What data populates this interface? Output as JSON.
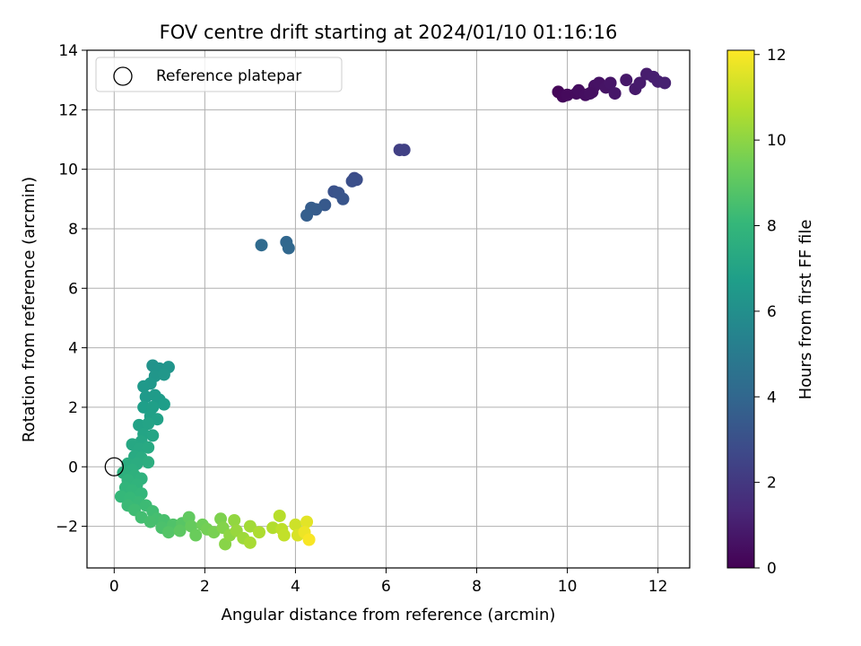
{
  "chart_data": {
    "type": "scatter",
    "title": "FOV centre drift starting at 2024/01/10 01:16:16",
    "xlabel": "Angular distance from reference (arcmin)",
    "ylabel": "Rotation from reference (arcmin)",
    "xlim": [
      -0.6,
      12.7
    ],
    "ylim": [
      -3.4,
      14.0
    ],
    "xticks": [
      0,
      2,
      4,
      6,
      8,
      10,
      12
    ],
    "yticks": [
      -2,
      0,
      2,
      4,
      6,
      8,
      10,
      12,
      14
    ],
    "grid": true,
    "legend": {
      "placement": "top-left",
      "entries": [
        "Reference platepar"
      ]
    },
    "reference_point": {
      "x": 0,
      "y": 0,
      "label": "Reference platepar"
    },
    "colorbar": {
      "label": "Hours from first FF file",
      "min": 0,
      "max": 12.1,
      "ticks": [
        0,
        2,
        4,
        6,
        8,
        10,
        12
      ],
      "colormap": "viridis"
    },
    "colormap_stops": [
      "#440154",
      "#482878",
      "#3e4989",
      "#31688e",
      "#26828e",
      "#1f9e89",
      "#35b779",
      "#6ece58",
      "#b5de2b",
      "#fde725"
    ],
    "series": [
      {
        "points": [
          {
            "x": 9.8,
            "y": 12.6,
            "c": 0.2
          },
          {
            "x": 9.9,
            "y": 12.45,
            "c": 0.25
          },
          {
            "x": 10.0,
            "y": 12.5,
            "c": 0.3
          },
          {
            "x": 10.2,
            "y": 12.55,
            "c": 0.35
          },
          {
            "x": 10.25,
            "y": 12.65,
            "c": 0.4
          },
          {
            "x": 10.4,
            "y": 12.5,
            "c": 0.45
          },
          {
            "x": 10.55,
            "y": 12.6,
            "c": 0.5
          },
          {
            "x": 10.6,
            "y": 12.8,
            "c": 0.55
          },
          {
            "x": 10.7,
            "y": 12.9,
            "c": 0.6
          },
          {
            "x": 10.85,
            "y": 12.75,
            "c": 0.65
          },
          {
            "x": 10.95,
            "y": 12.9,
            "c": 0.7
          },
          {
            "x": 11.05,
            "y": 12.55,
            "c": 0.75
          },
          {
            "x": 11.3,
            "y": 13.0,
            "c": 0.8
          },
          {
            "x": 11.5,
            "y": 12.7,
            "c": 0.85
          },
          {
            "x": 11.6,
            "y": 12.9,
            "c": 0.9
          },
          {
            "x": 11.75,
            "y": 13.2,
            "c": 0.95
          },
          {
            "x": 11.9,
            "y": 13.1,
            "c": 1.0
          },
          {
            "x": 12.0,
            "y": 12.95,
            "c": 1.05
          },
          {
            "x": 12.15,
            "y": 12.9,
            "c": 1.1
          },
          {
            "x": 10.5,
            "y": 12.55,
            "c": 0.5
          },
          {
            "x": 6.3,
            "y": 10.65,
            "c": 2.3
          },
          {
            "x": 6.4,
            "y": 10.65,
            "c": 2.35
          },
          {
            "x": 5.3,
            "y": 9.7,
            "c": 2.8
          },
          {
            "x": 5.35,
            "y": 9.65,
            "c": 2.9
          },
          {
            "x": 5.25,
            "y": 9.6,
            "c": 2.95
          },
          {
            "x": 4.85,
            "y": 9.25,
            "c": 3.1
          },
          {
            "x": 4.95,
            "y": 9.2,
            "c": 3.15
          },
          {
            "x": 5.05,
            "y": 9.0,
            "c": 3.2
          },
          {
            "x": 4.65,
            "y": 8.8,
            "c": 3.4
          },
          {
            "x": 4.45,
            "y": 8.65,
            "c": 3.5
          },
          {
            "x": 4.35,
            "y": 8.7,
            "c": 3.55
          },
          {
            "x": 4.25,
            "y": 8.45,
            "c": 3.65
          },
          {
            "x": 3.8,
            "y": 7.55,
            "c": 4.0
          },
          {
            "x": 3.85,
            "y": 7.35,
            "c": 4.05
          },
          {
            "x": 3.25,
            "y": 7.45,
            "c": 4.2
          },
          {
            "x": 0.85,
            "y": 3.4,
            "c": 6.2
          },
          {
            "x": 1.0,
            "y": 3.3,
            "c": 6.25
          },
          {
            "x": 1.2,
            "y": 3.35,
            "c": 6.3
          },
          {
            "x": 0.9,
            "y": 3.05,
            "c": 6.35
          },
          {
            "x": 1.1,
            "y": 3.1,
            "c": 6.4
          },
          {
            "x": 0.8,
            "y": 2.8,
            "c": 6.45
          },
          {
            "x": 0.65,
            "y": 2.7,
            "c": 6.5
          },
          {
            "x": 0.7,
            "y": 2.35,
            "c": 6.55
          },
          {
            "x": 0.9,
            "y": 2.4,
            "c": 6.6
          },
          {
            "x": 1.0,
            "y": 2.25,
            "c": 6.65
          },
          {
            "x": 1.1,
            "y": 2.1,
            "c": 6.7
          },
          {
            "x": 0.65,
            "y": 2.0,
            "c": 6.75
          },
          {
            "x": 0.85,
            "y": 2.0,
            "c": 6.8
          },
          {
            "x": 0.8,
            "y": 1.7,
            "c": 6.85
          },
          {
            "x": 0.95,
            "y": 1.6,
            "c": 6.9
          },
          {
            "x": 0.55,
            "y": 1.4,
            "c": 6.95
          },
          {
            "x": 0.75,
            "y": 1.45,
            "c": 7.0
          },
          {
            "x": 0.65,
            "y": 1.1,
            "c": 7.05
          },
          {
            "x": 0.85,
            "y": 1.05,
            "c": 7.1
          },
          {
            "x": 0.6,
            "y": 0.85,
            "c": 7.15
          },
          {
            "x": 0.4,
            "y": 0.75,
            "c": 7.2
          },
          {
            "x": 0.55,
            "y": 0.6,
            "c": 7.25
          },
          {
            "x": 0.75,
            "y": 0.65,
            "c": 7.3
          },
          {
            "x": 0.45,
            "y": 0.35,
            "c": 7.35
          },
          {
            "x": 0.6,
            "y": 0.3,
            "c": 7.4
          },
          {
            "x": 0.3,
            "y": 0.1,
            "c": 7.45
          },
          {
            "x": 0.5,
            "y": 0.1,
            "c": 7.5
          },
          {
            "x": 0.75,
            "y": 0.15,
            "c": 7.55
          },
          {
            "x": 0.4,
            "y": -0.1,
            "c": 7.6
          },
          {
            "x": 0.2,
            "y": -0.2,
            "c": 7.65
          },
          {
            "x": 0.45,
            "y": -0.3,
            "c": 7.7
          },
          {
            "x": 0.6,
            "y": -0.4,
            "c": 7.75
          },
          {
            "x": 0.3,
            "y": -0.45,
            "c": 7.8
          },
          {
            "x": 0.5,
            "y": -0.6,
            "c": 7.85
          },
          {
            "x": 0.25,
            "y": -0.7,
            "c": 7.9
          },
          {
            "x": 0.4,
            "y": -0.8,
            "c": 7.95
          },
          {
            "x": 0.6,
            "y": -0.9,
            "c": 8.0
          },
          {
            "x": 0.15,
            "y": -1.0,
            "c": 8.05
          },
          {
            "x": 0.35,
            "y": -1.05,
            "c": 8.1
          },
          {
            "x": 0.55,
            "y": -1.2,
            "c": 8.15
          },
          {
            "x": 0.3,
            "y": -1.3,
            "c": 8.2
          },
          {
            "x": 0.7,
            "y": -1.3,
            "c": 8.25
          },
          {
            "x": 0.45,
            "y": -1.45,
            "c": 8.3
          },
          {
            "x": 0.85,
            "y": -1.5,
            "c": 8.35
          },
          {
            "x": 0.6,
            "y": -1.7,
            "c": 8.4
          },
          {
            "x": 0.95,
            "y": -1.75,
            "c": 8.45
          },
          {
            "x": 0.8,
            "y": -1.85,
            "c": 8.5
          },
          {
            "x": 1.1,
            "y": -1.8,
            "c": 8.55
          },
          {
            "x": 1.05,
            "y": -2.05,
            "c": 8.6
          },
          {
            "x": 1.3,
            "y": -1.95,
            "c": 8.7
          },
          {
            "x": 1.2,
            "y": -2.2,
            "c": 8.8
          },
          {
            "x": 1.5,
            "y": -1.9,
            "c": 8.9
          },
          {
            "x": 1.45,
            "y": -2.15,
            "c": 9.0
          },
          {
            "x": 1.65,
            "y": -1.7,
            "c": 9.1
          },
          {
            "x": 1.7,
            "y": -2.0,
            "c": 9.2
          },
          {
            "x": 1.8,
            "y": -2.3,
            "c": 9.3
          },
          {
            "x": 1.95,
            "y": -1.95,
            "c": 9.4
          },
          {
            "x": 2.05,
            "y": -2.1,
            "c": 9.5
          },
          {
            "x": 2.2,
            "y": -2.2,
            "c": 9.6
          },
          {
            "x": 2.35,
            "y": -1.75,
            "c": 9.7
          },
          {
            "x": 2.4,
            "y": -2.05,
            "c": 9.8
          },
          {
            "x": 2.45,
            "y": -2.6,
            "c": 9.9
          },
          {
            "x": 2.55,
            "y": -2.3,
            "c": 10.0
          },
          {
            "x": 2.65,
            "y": -1.8,
            "c": 10.1
          },
          {
            "x": 2.7,
            "y": -2.15,
            "c": 10.2
          },
          {
            "x": 2.85,
            "y": -2.4,
            "c": 10.3
          },
          {
            "x": 3.0,
            "y": -2.0,
            "c": 10.4
          },
          {
            "x": 3.0,
            "y": -2.55,
            "c": 10.5
          },
          {
            "x": 3.2,
            "y": -2.2,
            "c": 10.6
          },
          {
            "x": 3.5,
            "y": -2.05,
            "c": 10.7
          },
          {
            "x": 3.65,
            "y": -1.65,
            "c": 10.8
          },
          {
            "x": 3.7,
            "y": -2.1,
            "c": 10.9
          },
          {
            "x": 3.75,
            "y": -2.3,
            "c": 11.0
          },
          {
            "x": 4.0,
            "y": -1.95,
            "c": 11.2
          },
          {
            "x": 4.05,
            "y": -2.3,
            "c": 11.4
          },
          {
            "x": 4.25,
            "y": -1.85,
            "c": 11.6
          },
          {
            "x": 4.2,
            "y": -2.2,
            "c": 11.8
          },
          {
            "x": 4.3,
            "y": -2.45,
            "c": 12.0
          }
        ]
      }
    ]
  }
}
